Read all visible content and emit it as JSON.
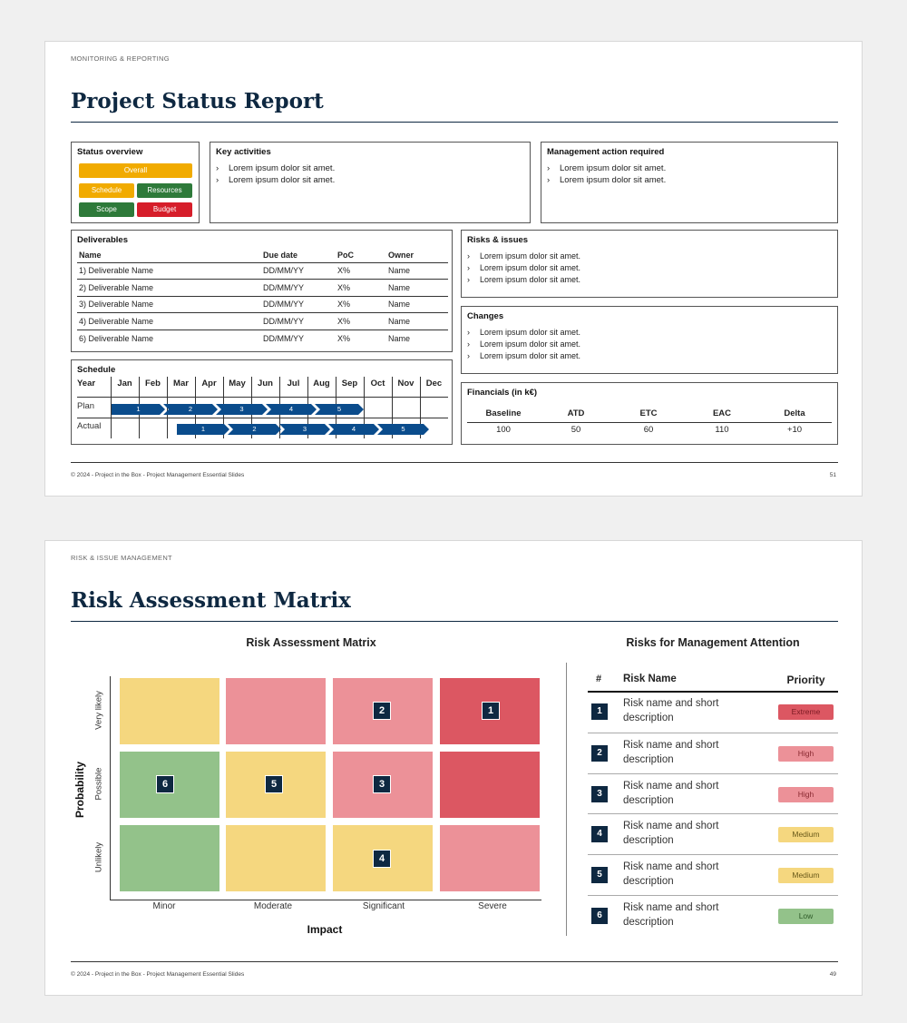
{
  "slide1": {
    "kicker": "MONITORING & REPORTING",
    "title": "Project Status Report",
    "status": {
      "heading": "Status overview",
      "overall": "Overall",
      "schedule": "Schedule",
      "resources": "Resources",
      "scope": "Scope",
      "budget": "Budget"
    },
    "key_activities": {
      "heading": "Key activities",
      "items": [
        "Lorem ipsum dolor sit amet.",
        "Lorem ipsum dolor sit amet."
      ]
    },
    "management": {
      "heading": "Management action required",
      "items": [
        "Lorem ipsum dolor sit amet.",
        "Lorem ipsum dolor sit amet."
      ]
    },
    "deliverables": {
      "heading": "Deliverables",
      "columns": [
        "Name",
        "Due date",
        "PoC",
        "Owner"
      ],
      "rows": [
        [
          "1) Deliverable Name",
          "DD/MM/YY",
          "X%",
          "Name"
        ],
        [
          "2) Deliverable Name",
          "DD/MM/YY",
          "X%",
          "Name"
        ],
        [
          "3) Deliverable Name",
          "DD/MM/YY",
          "X%",
          "Name"
        ],
        [
          "4) Deliverable Name",
          "DD/MM/YY",
          "X%",
          "Name"
        ],
        [
          "6) Deliverable Name",
          "DD/MM/YY",
          "X%",
          "Name"
        ]
      ]
    },
    "risks": {
      "heading": "Risks & issues",
      "items": [
        "Lorem ipsum dolor sit amet.",
        "Lorem ipsum dolor sit amet.",
        "Lorem ipsum dolor sit amet."
      ]
    },
    "changes": {
      "heading": "Changes",
      "items": [
        "Lorem ipsum dolor sit amet.",
        "Lorem ipsum dolor sit amet.",
        "Lorem ipsum dolor sit amet."
      ]
    },
    "schedule": {
      "heading": "Schedule",
      "year_label": "Year",
      "months": [
        "Jan",
        "Feb",
        "Mar",
        "Apr",
        "May",
        "Jun",
        "Jul",
        "Aug",
        "Sep",
        "Oct",
        "Nov",
        "Dec"
      ],
      "plan_label": "Plan",
      "actual_label": "Actual",
      "plan_phases": [
        "1",
        "2",
        "3",
        "4",
        "5"
      ],
      "actual_phases": [
        "1",
        "2",
        "3",
        "4",
        "5"
      ]
    },
    "financials": {
      "heading": "Financials  (in k€)",
      "columns": [
        "Baseline",
        "ATD",
        "ETC",
        "EAC",
        "Delta"
      ],
      "values": [
        "100",
        "50",
        "60",
        "110",
        "+10"
      ]
    },
    "footer": "© 2024 - Project in the Box - Project Management Essential Slides",
    "page": "51"
  },
  "slide2": {
    "kicker": "RISK & ISSUE MANAGEMENT",
    "title": "Risk Assessment Matrix",
    "matrix": {
      "heading": "Risk Assessment  Matrix",
      "y_axis": "Probability",
      "x_axis": "Impact",
      "rows": [
        "Very likely",
        "Possible",
        "Unlikely"
      ],
      "cols": [
        "Minor",
        "Moderate",
        "Significant",
        "Severe"
      ],
      "badges": [
        "1",
        "2",
        "3",
        "4",
        "5",
        "6"
      ]
    },
    "attention": {
      "heading": "Risks for Management Attention",
      "col_num": "#",
      "col_name": "Risk Name",
      "col_priority": "Priority",
      "rows": [
        {
          "num": "1",
          "name": "Risk name and short description",
          "priority": "Extreme"
        },
        {
          "num": "2",
          "name": "Risk name and short description",
          "priority": "High"
        },
        {
          "num": "3",
          "name": "Risk name and short description",
          "priority": "High"
        },
        {
          "num": "4",
          "name": "Risk name and short description",
          "priority": "Medium"
        },
        {
          "num": "5",
          "name": "Risk name and short description",
          "priority": "Medium"
        },
        {
          "num": "6",
          "name": "Risk name and short description",
          "priority": "Low"
        }
      ]
    },
    "footer": "© 2024 - Project in the Box - Project Management Essential Slides",
    "page": "49"
  }
}
